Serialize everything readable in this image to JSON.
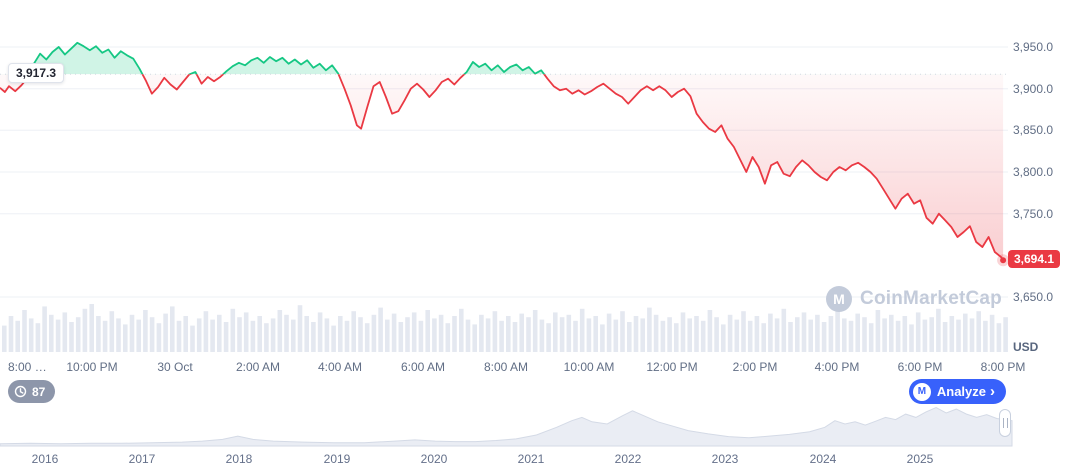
{
  "chart": {
    "open_label": "3,917.3",
    "last_label": "3,694.1",
    "unit_label": "USD"
  },
  "watermark": {
    "brand": "CoinMarketCap",
    "logo_glyph": "M"
  },
  "controls": {
    "history_count": "87",
    "analyze_label": "Analyze",
    "analyze_chevron": "›",
    "logo_glyph": "M"
  },
  "chart_data": [
    {
      "type": "line",
      "name": "price-intraday",
      "baseline": 3917.3,
      "last_price": 3694.1,
      "x_unit": "hours since 8:00 PM, 29 Oct",
      "x_ticks": [
        "8:00 …",
        "10:00 PM",
        "30 Oct",
        "2:00 AM",
        "4:00 AM",
        "6:00 AM",
        "8:00 AM",
        "10:00 AM",
        "12:00 PM",
        "2:00 PM",
        "4:00 PM",
        "6:00 PM",
        "8:00 PM"
      ],
      "x_tick_hours": [
        0,
        2,
        4,
        6,
        8,
        10,
        12,
        14,
        16,
        18,
        20,
        22,
        24
      ],
      "y_ticks": [
        3950,
        3900,
        3850,
        3800,
        3750,
        3650
      ],
      "y_tick_labels": [
        "3,950.0",
        "3,900.0",
        "3,850.0",
        "3,800.0",
        "3,750.0",
        "3,650.0"
      ],
      "ylim": [
        3630,
        3980
      ],
      "grid": true,
      "colors": {
        "up": "#16c784",
        "down": "#ea3943",
        "up_fill": "rgba(22,199,132,0.20)",
        "grid": "#eef0f6",
        "tick": "#616e85"
      },
      "points": [
        [
          -0.22,
          3901
        ],
        [
          -0.1,
          3896
        ],
        [
          0,
          3903
        ],
        [
          0.15,
          3897
        ],
        [
          0.3,
          3904
        ],
        [
          0.45,
          3913
        ],
        [
          0.6,
          3930
        ],
        [
          0.75,
          3942
        ],
        [
          0.9,
          3935
        ],
        [
          1.05,
          3944
        ],
        [
          1.2,
          3950
        ],
        [
          1.35,
          3941
        ],
        [
          1.5,
          3948
        ],
        [
          1.65,
          3955
        ],
        [
          1.8,
          3951
        ],
        [
          1.95,
          3946
        ],
        [
          2.1,
          3951
        ],
        [
          2.25,
          3943
        ],
        [
          2.4,
          3947
        ],
        [
          2.55,
          3937
        ],
        [
          2.7,
          3945
        ],
        [
          2.85,
          3940
        ],
        [
          3.0,
          3936
        ],
        [
          3.15,
          3924
        ],
        [
          3.3,
          3910
        ],
        [
          3.45,
          3894
        ],
        [
          3.6,
          3902
        ],
        [
          3.75,
          3913
        ],
        [
          3.9,
          3905
        ],
        [
          4.05,
          3899
        ],
        [
          4.2,
          3908
        ],
        [
          4.35,
          3917
        ],
        [
          4.5,
          3920
        ],
        [
          4.65,
          3906
        ],
        [
          4.8,
          3914
        ],
        [
          4.95,
          3909
        ],
        [
          5.1,
          3914
        ],
        [
          5.25,
          3921
        ],
        [
          5.4,
          3927
        ],
        [
          5.55,
          3931
        ],
        [
          5.7,
          3928
        ],
        [
          5.85,
          3934
        ],
        [
          6.0,
          3937
        ],
        [
          6.15,
          3931
        ],
        [
          6.3,
          3938
        ],
        [
          6.45,
          3933
        ],
        [
          6.6,
          3937
        ],
        [
          6.75,
          3930
        ],
        [
          6.9,
          3935
        ],
        [
          7.05,
          3929
        ],
        [
          7.2,
          3934
        ],
        [
          7.35,
          3925
        ],
        [
          7.5,
          3930
        ],
        [
          7.65,
          3922
        ],
        [
          7.8,
          3928
        ],
        [
          7.95,
          3918
        ],
        [
          8.1,
          3900
        ],
        [
          8.25,
          3880
        ],
        [
          8.4,
          3856
        ],
        [
          8.5,
          3852
        ],
        [
          8.65,
          3878
        ],
        [
          8.8,
          3903
        ],
        [
          8.95,
          3908
        ],
        [
          9.1,
          3890
        ],
        [
          9.25,
          3870
        ],
        [
          9.4,
          3873
        ],
        [
          9.55,
          3886
        ],
        [
          9.7,
          3900
        ],
        [
          9.85,
          3906
        ],
        [
          10.0,
          3899
        ],
        [
          10.15,
          3890
        ],
        [
          10.3,
          3898
        ],
        [
          10.45,
          3908
        ],
        [
          10.6,
          3912
        ],
        [
          10.75,
          3905
        ],
        [
          10.9,
          3913
        ],
        [
          11.05,
          3920
        ],
        [
          11.2,
          3932
        ],
        [
          11.35,
          3926
        ],
        [
          11.5,
          3930
        ],
        [
          11.65,
          3922
        ],
        [
          11.8,
          3928
        ],
        [
          11.95,
          3920
        ],
        [
          12.1,
          3926
        ],
        [
          12.25,
          3929
        ],
        [
          12.4,
          3922
        ],
        [
          12.55,
          3926
        ],
        [
          12.7,
          3918
        ],
        [
          12.85,
          3922
        ],
        [
          13.0,
          3912
        ],
        [
          13.15,
          3903
        ],
        [
          13.3,
          3898
        ],
        [
          13.45,
          3900
        ],
        [
          13.6,
          3894
        ],
        [
          13.75,
          3898
        ],
        [
          13.9,
          3893
        ],
        [
          14.05,
          3897
        ],
        [
          14.2,
          3902
        ],
        [
          14.35,
          3906
        ],
        [
          14.5,
          3900
        ],
        [
          14.65,
          3894
        ],
        [
          14.8,
          3890
        ],
        [
          14.95,
          3882
        ],
        [
          15.1,
          3890
        ],
        [
          15.25,
          3898
        ],
        [
          15.4,
          3903
        ],
        [
          15.55,
          3898
        ],
        [
          15.7,
          3903
        ],
        [
          15.85,
          3898
        ],
        [
          16.0,
          3890
        ],
        [
          16.15,
          3896
        ],
        [
          16.3,
          3900
        ],
        [
          16.45,
          3891
        ],
        [
          16.6,
          3870
        ],
        [
          16.75,
          3860
        ],
        [
          16.9,
          3852
        ],
        [
          17.05,
          3848
        ],
        [
          17.2,
          3856
        ],
        [
          17.35,
          3840
        ],
        [
          17.5,
          3830
        ],
        [
          17.65,
          3815
        ],
        [
          17.8,
          3800
        ],
        [
          17.95,
          3818
        ],
        [
          18.1,
          3806
        ],
        [
          18.25,
          3786
        ],
        [
          18.4,
          3808
        ],
        [
          18.55,
          3812
        ],
        [
          18.7,
          3798
        ],
        [
          18.85,
          3795
        ],
        [
          19.0,
          3806
        ],
        [
          19.15,
          3814
        ],
        [
          19.3,
          3808
        ],
        [
          19.45,
          3800
        ],
        [
          19.6,
          3794
        ],
        [
          19.75,
          3790
        ],
        [
          19.9,
          3800
        ],
        [
          20.05,
          3806
        ],
        [
          20.2,
          3802
        ],
        [
          20.35,
          3808
        ],
        [
          20.5,
          3811
        ],
        [
          20.65,
          3806
        ],
        [
          20.8,
          3800
        ],
        [
          20.95,
          3792
        ],
        [
          21.1,
          3780
        ],
        [
          21.25,
          3768
        ],
        [
          21.4,
          3756
        ],
        [
          21.55,
          3768
        ],
        [
          21.7,
          3774
        ],
        [
          21.85,
          3762
        ],
        [
          22.0,
          3766
        ],
        [
          22.15,
          3745
        ],
        [
          22.3,
          3738
        ],
        [
          22.45,
          3750
        ],
        [
          22.6,
          3742
        ],
        [
          22.75,
          3734
        ],
        [
          22.9,
          3722
        ],
        [
          23.05,
          3728
        ],
        [
          23.2,
          3735
        ],
        [
          23.35,
          3716
        ],
        [
          23.5,
          3710
        ],
        [
          23.65,
          3722
        ],
        [
          23.8,
          3704
        ],
        [
          23.95,
          3698
        ],
        [
          24.0,
          3694.1
        ]
      ]
    },
    {
      "type": "bar",
      "name": "volume",
      "color": "#e4e8f0",
      "values": [
        22,
        30,
        26,
        35,
        28,
        24,
        38,
        31,
        27,
        33,
        25,
        29,
        36,
        40,
        30,
        26,
        34,
        28,
        23,
        31,
        27,
        35,
        29,
        24,
        32,
        38,
        26,
        30,
        22,
        28,
        34,
        27,
        31,
        25,
        36,
        29,
        33,
        26,
        30,
        24,
        28,
        35,
        31,
        27,
        39,
        30,
        25,
        33,
        28,
        22,
        30,
        26,
        34,
        29,
        24,
        31,
        37,
        27,
        32,
        25,
        29,
        33,
        26,
        35,
        28,
        31,
        24,
        30,
        36,
        27,
        23,
        31,
        28,
        34,
        26,
        30,
        25,
        32,
        29,
        35,
        27,
        24,
        33,
        29,
        31,
        26,
        36,
        28,
        30,
        23,
        32,
        27,
        34,
        25,
        30,
        28,
        37,
        31,
        26,
        29,
        24,
        33,
        28,
        30,
        26,
        35,
        29,
        23,
        31,
        27,
        34,
        26,
        30,
        24,
        32,
        28,
        36,
        25,
        29,
        33,
        27,
        31,
        25,
        30,
        34,
        28,
        26,
        32,
        29,
        24,
        35,
        28,
        31,
        26,
        30,
        23,
        33,
        27,
        29,
        36,
        25,
        30,
        27,
        32,
        28,
        34,
        26,
        31,
        24,
        29
      ]
    },
    {
      "type": "area",
      "name": "price-history-minimap",
      "x_ticks": [
        "2016",
        "2017",
        "2018",
        "2019",
        "2020",
        "2021",
        "2022",
        "2023",
        "2024",
        "2025"
      ],
      "fill": "#eaedf4",
      "stroke": "#d4dae6",
      "points": [
        [
          0,
          0.04
        ],
        [
          0.03,
          0.05
        ],
        [
          0.06,
          0.04
        ],
        [
          0.09,
          0.05
        ],
        [
          0.12,
          0.05
        ],
        [
          0.15,
          0.06
        ],
        [
          0.18,
          0.07
        ],
        [
          0.2,
          0.09
        ],
        [
          0.22,
          0.12
        ],
        [
          0.235,
          0.18
        ],
        [
          0.25,
          0.12
        ],
        [
          0.27,
          0.09
        ],
        [
          0.3,
          0.07
        ],
        [
          0.33,
          0.06
        ],
        [
          0.36,
          0.06
        ],
        [
          0.39,
          0.09
        ],
        [
          0.41,
          0.11
        ],
        [
          0.43,
          0.09
        ],
        [
          0.45,
          0.08
        ],
        [
          0.47,
          0.08
        ],
        [
          0.49,
          0.1
        ],
        [
          0.51,
          0.13
        ],
        [
          0.53,
          0.2
        ],
        [
          0.55,
          0.34
        ],
        [
          0.565,
          0.46
        ],
        [
          0.575,
          0.52
        ],
        [
          0.585,
          0.44
        ],
        [
          0.6,
          0.4
        ],
        [
          0.615,
          0.55
        ],
        [
          0.625,
          0.64
        ],
        [
          0.635,
          0.56
        ],
        [
          0.65,
          0.44
        ],
        [
          0.665,
          0.36
        ],
        [
          0.68,
          0.28
        ],
        [
          0.7,
          0.22
        ],
        [
          0.72,
          0.17
        ],
        [
          0.74,
          0.15
        ],
        [
          0.76,
          0.18
        ],
        [
          0.78,
          0.21
        ],
        [
          0.8,
          0.26
        ],
        [
          0.815,
          0.34
        ],
        [
          0.825,
          0.46
        ],
        [
          0.835,
          0.4
        ],
        [
          0.845,
          0.44
        ],
        [
          0.855,
          0.38
        ],
        [
          0.865,
          0.45
        ],
        [
          0.875,
          0.52
        ],
        [
          0.885,
          0.48
        ],
        [
          0.895,
          0.58
        ],
        [
          0.905,
          0.52
        ],
        [
          0.915,
          0.62
        ],
        [
          0.925,
          0.7
        ],
        [
          0.935,
          0.6
        ],
        [
          0.945,
          0.67
        ],
        [
          0.955,
          0.58
        ],
        [
          0.965,
          0.52
        ],
        [
          0.975,
          0.57
        ],
        [
          0.985,
          0.5
        ],
        [
          1.0,
          0.46
        ]
      ]
    }
  ]
}
